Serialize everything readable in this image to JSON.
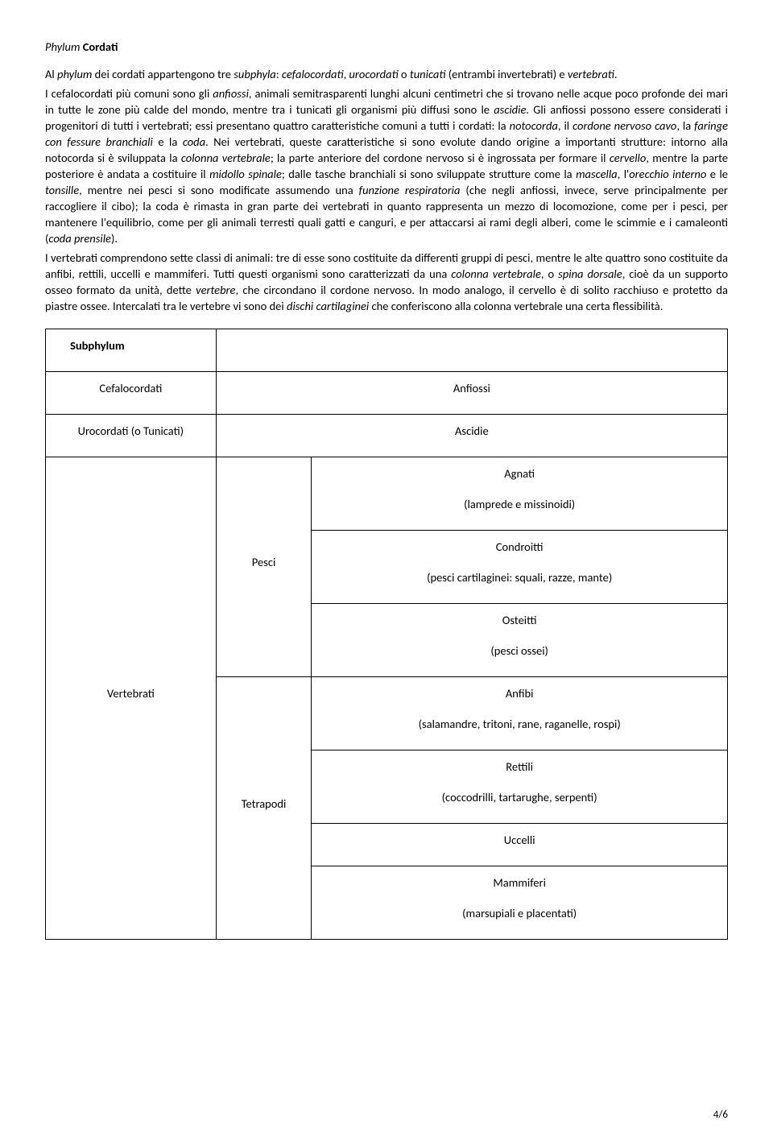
{
  "heading_prefix": "Phylum ",
  "heading_bold": "Cordati",
  "para1_html": "Al <span class='italic'>phylum</span> dei cordati appartengono tre <span class='italic'>subphyla</span>: <span class='italic'>cefalocordati</span>, <span class='italic'>urocordati</span> o <span class='italic'>tunicati</span> (entrambi invertebrati) e <span class='italic'>vertebrati</span>.",
  "para2_html": "I cefalocordati più comuni sono gli <span class='italic'>anfiossi</span>, animali semitrasparenti lunghi alcuni centimetri che si trovano nelle acque poco profonde dei mari in tutte le zone più calde del mondo, mentre tra i tunicati gli organismi più diffusi sono le <span class='italic'>ascidie</span>. Gli anfiossi possono essere considerati i progenitori di tutti i vertebrati; essi presentano quattro caratteristiche comuni a tutti i cordati: la <span class='italic'>notocorda</span>, il <span class='italic'>cordone nervoso cavo</span>, la <span class='italic'>faringe con fessure branchiali</span> e la <span class='italic'>coda</span>. Nei vertebrati, queste caratteristiche si sono evolute dando origine a importanti strutture: intorno alla notocorda si è sviluppata la <span class='italic'>colonna vertebrale</span>; la parte anteriore del cordone nervoso si è ingrossata per formare il <span class='italic'>cervello</span>, mentre la parte posteriore è andata a costituire il <span class='italic'>midollo spinale</span>; dalle tasche branchiali si sono sviluppate strutture come la <span class='italic'>mascella</span>, l'<span class='italic'>orecchio interno</span> e le <span class='italic'>tonsille</span>, mentre nei pesci si sono modificate assumendo una <span class='italic'>funzione respiratoria</span> (che negli anfiossi, invece, serve principalmente per raccogliere il cibo); la coda è rimasta in gran parte dei vertebrati in quanto rappresenta un mezzo di locomozione, come per i pesci, per mantenere l'equilibrio, come per gli animali terresti quali gatti e canguri, e per attaccarsi ai rami degli alberi, come le scimmie e i camaleonti (<span class='italic'>coda prensile</span>).",
  "para3_html": "I vertebrati comprendono sette classi di animali: tre di esse sono costituite da differenti gruppi di pesci, mentre le alte quattro sono costituite da anfibi, rettili, uccelli e mammiferi. Tutti questi organismi sono caratterizzati da una <span class='italic'>colonna vertebrale</span>, o <span class='italic'>spina dorsale</span>, cioè da un supporto osseo formato da unità, dette <span class='italic'>vertebre</span>, che circondano il cordone nervoso. In modo analogo, il cervello è di solito racchiuso e protetto da piastre ossee. Intercalati tra le vertebre vi sono dei <span class='italic'>dischi cartilaginei</span> che conferiscono alla colonna vertebrale una certa flessibilità.",
  "table": {
    "col_widths": [
      "25%",
      "14%",
      "61%"
    ],
    "subphylum_header": "Subphylum",
    "cefalocordati": "Cefalocordati",
    "anfiossi": "Anfiossi",
    "urocordati": "Urocordati (o Tunicati)",
    "ascidie": "Ascidie",
    "vertebrati": "Vertebrati",
    "pesci": "Pesci",
    "tetrapodi": "Tetrapodi",
    "agnati": "Agnati",
    "agnati_sub": "(lamprede e missinoidi)",
    "condroitti": "Condroitti",
    "condroitti_sub": "(pesci cartilaginei: squali, razze, mante)",
    "osteitti": "Osteitti",
    "osteitti_sub": "(pesci ossei)",
    "anfibi": "Anfibi",
    "anfibi_sub": "(salamandre, tritoni, rane, raganelle, rospi)",
    "rettili": "Rettili",
    "rettili_sub": "(coccodrilli, tartarughe, serpenti)",
    "uccelli": "Uccelli",
    "mammiferi": "Mammiferi",
    "mammiferi_sub": "(marsupiali e placentati)"
  },
  "pagenum": "4/6"
}
